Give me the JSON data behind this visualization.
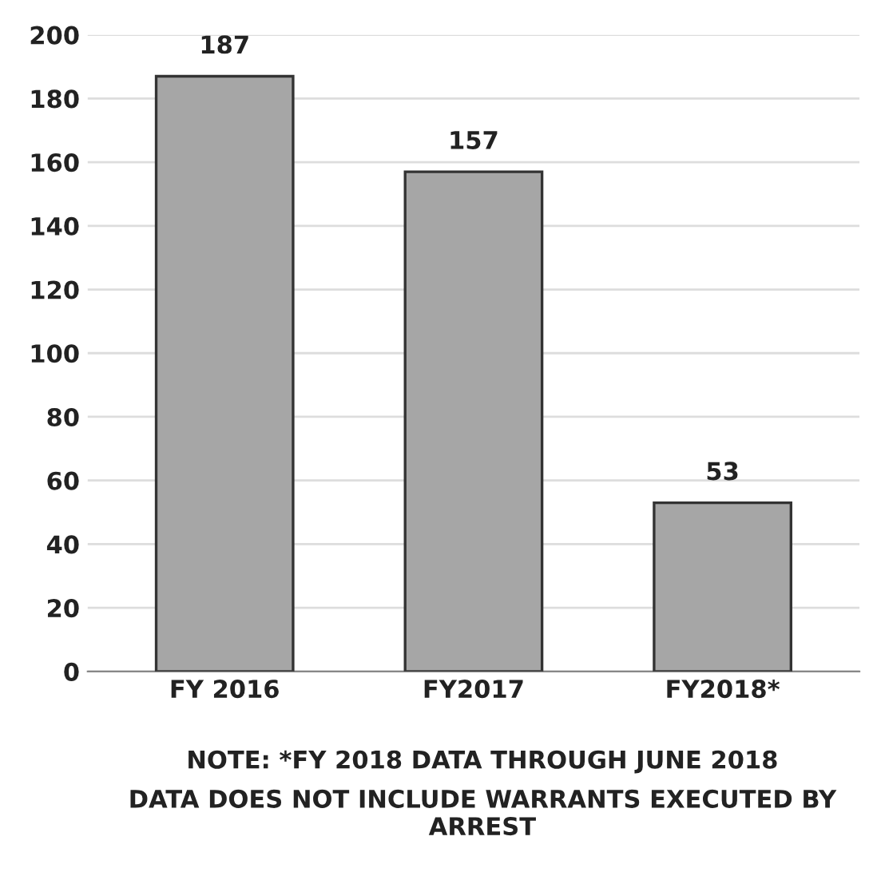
{
  "chart_data": {
    "type": "bar",
    "categories": [
      "FY 2016",
      "FY2017",
      "FY2018*"
    ],
    "values": [
      187,
      157,
      53
    ],
    "color": "#a6a6a6",
    "data_labels": true,
    "ylim": [
      0,
      200
    ],
    "yticks": [
      0,
      20,
      40,
      60,
      80,
      100,
      120,
      140,
      160,
      180,
      200
    ],
    "grid": "y",
    "annotations": [
      "NOTE: *FY 2018 DATA THROUGH JUNE 2018",
      "DATA DOES NOT INCLUDE WARRANTS EXECUTED BY ARREST"
    ]
  }
}
